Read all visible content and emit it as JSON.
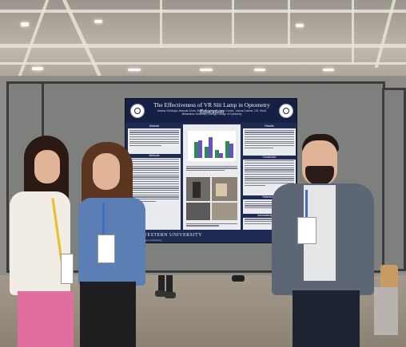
{
  "photo": {
    "description_alt": "",
    "colors": {
      "poster_blue": "#1e2b55",
      "panel_gray": "#7e807e",
      "lanyard_yellow": "#e8c020",
      "lanyard_blue": "#3b6fc9"
    }
  },
  "poster": {
    "title": "The Effectiveness of VR Slit Lamp in Optometry Education",
    "authors": "Jessica Chiriboga, Amanda Crone, Madison Hubbard, Sarah Cortes, Joshua Cortese, OD, FAAO",
    "affiliation": "Midwestern University Chicago College of Optometry",
    "sections": {
      "abstract": "Abstract",
      "methods": "Methods",
      "results": "Results",
      "conclusion": "Conclusion",
      "references": "References",
      "acknowledgements": "Acknowledgements"
    },
    "footer_name": "MIDWESTERN UNIVERSITY",
    "footer_sub": "Chicago College of Optometry"
  },
  "badges": [
    {
      "holder": "left-person"
    },
    {
      "holder": "middle-person"
    },
    {
      "holder": "right-person"
    }
  ]
}
